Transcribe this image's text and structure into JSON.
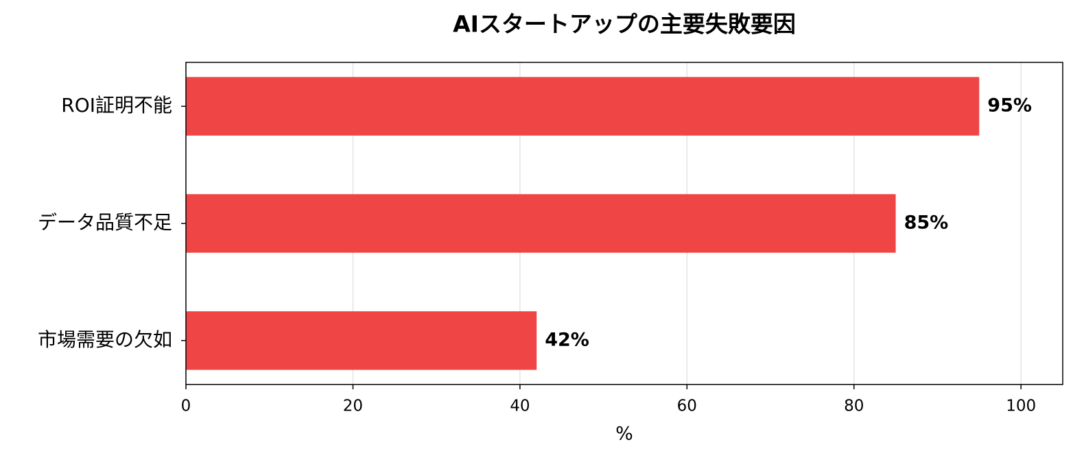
{
  "chart_data": {
    "type": "bar",
    "orientation": "horizontal",
    "title": "AIスタートアップの主要失敗要因",
    "x_label": "%",
    "categories": [
      "ROI証明不能",
      "データ品質不足",
      "市場需要の欠如"
    ],
    "values": [
      95,
      85,
      42
    ],
    "value_labels": [
      "95%",
      "85%",
      "42%"
    ],
    "color": "#ef4545",
    "xlim": [
      0,
      105
    ],
    "xticks": [
      0,
      20,
      40,
      60,
      80,
      100
    ],
    "grid": true
  }
}
